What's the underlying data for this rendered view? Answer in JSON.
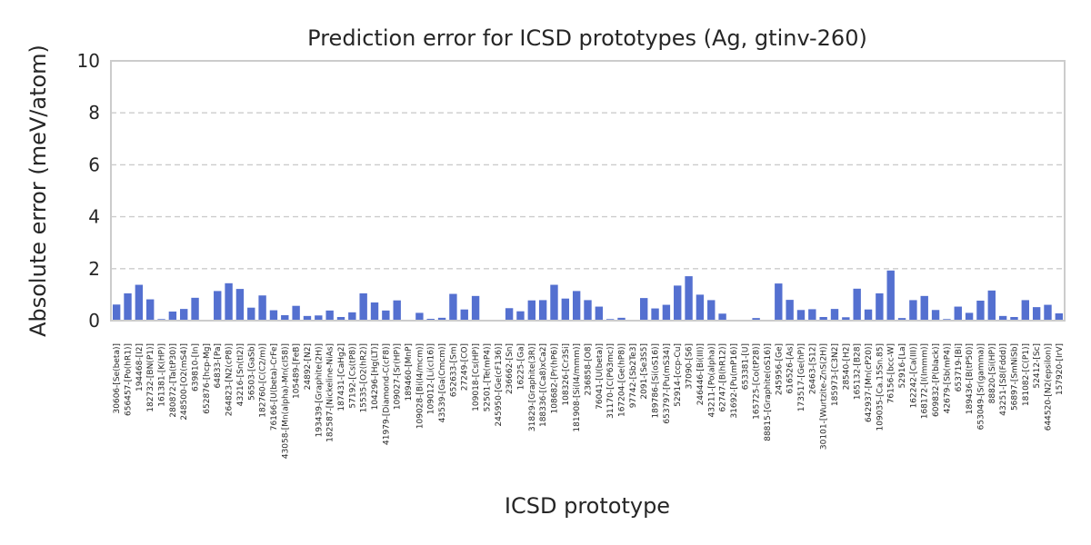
{
  "chart_data": {
    "type": "bar",
    "title": "Prediction error for ICSD prototypes (Ag, gtinv-260)",
    "xlabel": "ICSD prototype",
    "ylabel": "Absolute error (meV/atom)",
    "ylim": [
      0,
      10
    ],
    "yticks": [
      0,
      2,
      4,
      6,
      8,
      10
    ],
    "grid": "y-dashed",
    "bar_color": "#5470d0",
    "categories": [
      "30606-[Se(beta)]",
      "656457-[Po(hR1)]",
      "194468-[I2]",
      "182732-[BN(P1)]",
      "161381-[K(HP)]",
      "280872-[Ta(tP30)]",
      "248500-[O2(mS4)]",
      "639810-[In]",
      "652876-[hcp-Mg]",
      "64833-[Pa]",
      "264823-[N2(cP8)]",
      "43216-[Sn(tI2)]",
      "56503-[GaSb]",
      "182760-[C(C2/m)]",
      "76166-[U(beta)-CrFe]",
      "43058-[Mn(alpha)-Mn(cI58)]",
      "105489-[FeB]",
      "24892-[N2]",
      "193439-[Graphite(2H)]",
      "182587-[Nickeline-NiAs]",
      "187431-[CaHg2]",
      "57192-[Cs(tP8)]",
      "15535-[O2(hR2)]",
      "104296-[Hg(LT)]",
      "41979-[Diamond-C(cF8)]",
      "109027-[Sr(HP)]",
      "189460-[MnP]",
      "109028-[Bi(I4/mcm)]",
      "109012-[Li(cI16)]",
      "43539-[Ga(Cmcm)]",
      "652633-[Sm]",
      "27249-[CO]",
      "109018-[Cs(HP)]",
      "52501-[Te(mP4)]",
      "245950-[Ge(cF136)]",
      "236662-[Sn]",
      "16225-[Ga]",
      "31829-[Graphite(3R)]",
      "188336-[(Ca8)xCa2]",
      "108682-[Pr(hP6)]",
      "108326-[Cr3Si]",
      "181908-[Si(I4/mmm)]",
      "236858-[O8]",
      "76041-[U(beta)]",
      "31170-[C(P63mc)]",
      "167204-[Ge(hP8)]",
      "97742-[Sb2Te3]",
      "2091-[Se3S5]",
      "189786-[Si(oS16)]",
      "653797-[Pu(mS34)]",
      "52914-[ccp-Cu]",
      "37090-[S6]",
      "246446-[Bi(III)]",
      "43211-[Po(alpha)]",
      "62747-[B(hR12)]",
      "31692-[Pu(mP16)]",
      "653381-[U]",
      "165725-[Co(tP28)]",
      "88815-[Graphite(oS16)]",
      "245956-[Ge]",
      "616526-[As]",
      "173517-[Ge(hP)]",
      "26463-[S12]",
      "30101-[Wurtzite-ZnS(2H)]",
      "185973-[C3N2]",
      "28540-[H2]",
      "165132-[B28]",
      "642937-[Mn(cP20)]",
      "109035-[Ca.15Sn.85]",
      "76156-[bcc-W]",
      "52916-[La]",
      "162242-[Ca(III)]",
      "168172-[I(Immm)]",
      "609832-[P(black)]",
      "42679-[Sb(mP4)]",
      "653719-[Bi]",
      "189436-[B(tP50)]",
      "653049-[Sr(gamma)]",
      "88820-[Si(HP)]",
      "43251-[S8(Fddd)]",
      "56897-[SmNiSb]",
      "181082-[C(P1)]",
      "52412-[Sc]",
      "644520-[N2(epsilon)]",
      "157920-[IrV]"
    ],
    "values": [
      0.62,
      1.05,
      1.38,
      0.82,
      0.06,
      0.35,
      0.45,
      0.88,
      0.0,
      1.14,
      1.44,
      1.22,
      0.5,
      0.97,
      0.4,
      0.21,
      0.57,
      0.18,
      0.2,
      0.39,
      0.14,
      0.32,
      1.05,
      0.7,
      0.39,
      0.78,
      0.0,
      0.3,
      0.07,
      0.11,
      1.03,
      0.43,
      0.95,
      0.0,
      0.0,
      0.48,
      0.36,
      0.78,
      0.79,
      1.38,
      0.85,
      1.14,
      0.79,
      0.54,
      0.06,
      0.11,
      0.0,
      0.87,
      0.47,
      0.61,
      1.35,
      1.71,
      1.0,
      0.79,
      0.27,
      0.0,
      0.0,
      0.1,
      0.0,
      1.43,
      0.8,
      0.41,
      0.44,
      0.14,
      0.45,
      0.13,
      1.23,
      0.43,
      1.05,
      1.93,
      0.1,
      0.79,
      0.95,
      0.41,
      0.06,
      0.54,
      0.3,
      0.77,
      1.16,
      0.18,
      0.14,
      0.79,
      0.52,
      0.61,
      0.28
    ]
  }
}
